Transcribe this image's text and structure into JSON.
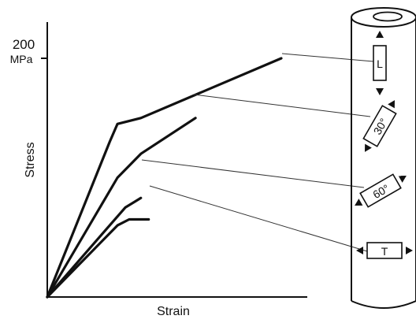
{
  "chart_data": {
    "type": "line",
    "xlabel": "Strain",
    "ylabel": "Stress",
    "ytick": {
      "value": "200",
      "unit": "MPa"
    },
    "series": [
      {
        "name": "L",
        "points": [
          [
            0,
            0
          ],
          [
            0.8,
            130
          ],
          [
            0.9,
            145
          ],
          [
            1.2,
            150
          ],
          [
            3.0,
            200
          ]
        ]
      },
      {
        "name": "30°",
        "points": [
          [
            0,
            0
          ],
          [
            0.9,
            100
          ],
          [
            1.2,
            120
          ],
          [
            1.9,
            150
          ]
        ]
      },
      {
        "name": "60°",
        "points": [
          [
            0,
            0
          ],
          [
            1.0,
            75
          ],
          [
            1.2,
            83
          ]
        ]
      },
      {
        "name": "T",
        "points": [
          [
            0,
            0
          ],
          [
            0.9,
            60
          ],
          [
            1.05,
            65
          ],
          [
            1.3,
            65
          ]
        ]
      }
    ]
  },
  "specimens": [
    {
      "label": "L"
    },
    {
      "label": "30°"
    },
    {
      "label": "60°"
    },
    {
      "label": "T"
    }
  ]
}
